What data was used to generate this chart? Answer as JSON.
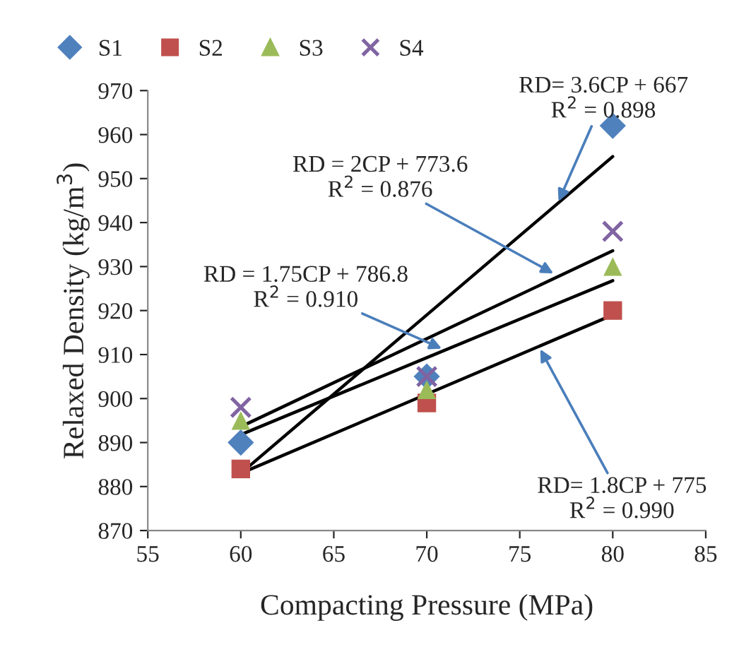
{
  "chart_data": {
    "type": "scatter",
    "xlabel": "Compacting Pressure (MPa)",
    "ylabel": "Relaxed Density (kg/m$^{3}$)",
    "x": [
      60,
      70,
      80
    ],
    "series": [
      {
        "name": "S1",
        "color": "#4f81bd",
        "marker": "diamond",
        "values": [
          890,
          905,
          962
        ]
      },
      {
        "name": "S2",
        "color": "#c0504d",
        "marker": "square",
        "values": [
          884,
          899,
          920
        ]
      },
      {
        "name": "S3",
        "color": "#9bbb59",
        "marker": "triangle",
        "values": [
          895,
          902,
          930
        ]
      },
      {
        "name": "S4",
        "color": "#8064a2",
        "marker": "cross",
        "values": [
          898,
          905,
          938
        ]
      },
      {
        "type": "line",
        "color": "#000000",
        "values": [
          883,
          919,
          955
        ]
      },
      {
        "type": "line",
        "color": "#000000",
        "values": [
          883,
          901,
          919
        ]
      },
      {
        "type": "line",
        "color": "#000000",
        "values": [
          891.8,
          909.3,
          926.8
        ]
      },
      {
        "type": "line",
        "color": "#000000",
        "values": [
          893.6,
          913.6,
          933.6
        ]
      }
    ],
    "annotations": [
      {
        "text": "RD= 3.6CP + 667\nR$^{2}$ = 0.898",
        "x": 77,
        "y": 944
      },
      {
        "text": "RD = 2CP + 773.6\nR$^{2}$ = 0.876",
        "x": 77,
        "y": 928
      },
      {
        "text": "RD = 1.75CP + 786.8\nR$^{2}$ = 0.910",
        "x": 71,
        "y": 911
      },
      {
        "text": "RD= 1.8CP + 775\nR$^{2}$ = 0.990",
        "x": 76,
        "y": 912
      }
    ],
    "xlim": [
      55,
      85
    ],
    "xticks": [
      55,
      60,
      65,
      70,
      75,
      80,
      85
    ],
    "ylim": [
      870,
      970
    ],
    "yticks": [
      870,
      880,
      890,
      900,
      910,
      920,
      930,
      940,
      950,
      960,
      970
    ],
    "grid": false,
    "legend": "top"
  }
}
